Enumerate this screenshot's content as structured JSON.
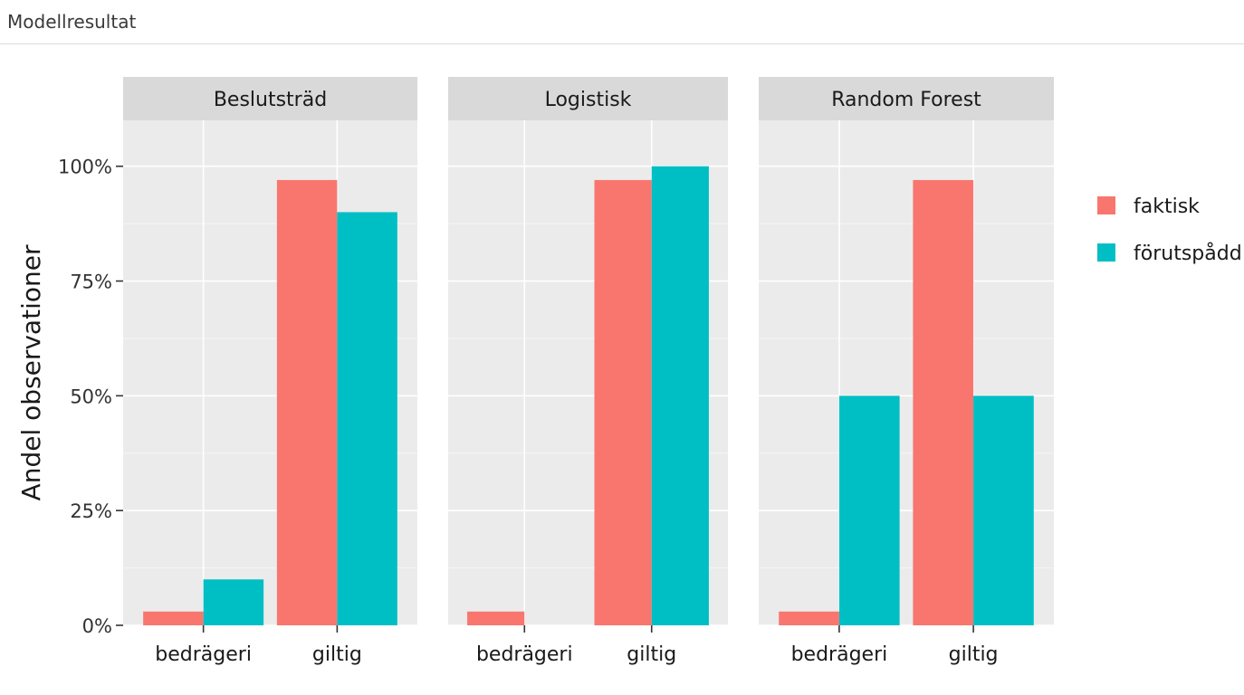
{
  "window": {
    "title": "Modellresultat"
  },
  "chart_data": {
    "type": "bar",
    "ylabel": "Andel observationer",
    "xlabel": "",
    "ylim": [
      0,
      1.1
    ],
    "yticks": [
      0,
      0.25,
      0.5,
      0.75,
      1.0
    ],
    "ytick_labels": [
      "0%",
      "25%",
      "50%",
      "75%",
      "100%"
    ],
    "categories": [
      "bedrägeri",
      "giltig"
    ],
    "grid": true,
    "legend_position": "right",
    "series_colors": {
      "faktisk": "#F8766D",
      "förutspådd": "#00BFC4"
    },
    "legend": [
      {
        "name": "faktisk",
        "color": "#F8766D"
      },
      {
        "name": "förutspådd",
        "color": "#00BFC4"
      }
    ],
    "panels": [
      {
        "title": "Beslutsträd",
        "series": [
          {
            "name": "faktisk",
            "values": [
              0.03,
              0.97
            ]
          },
          {
            "name": "förutspådd",
            "values": [
              0.1,
              0.9
            ]
          }
        ]
      },
      {
        "title": "Logistisk",
        "series": [
          {
            "name": "faktisk",
            "values": [
              0.03,
              0.97
            ]
          },
          {
            "name": "förutspådd",
            "values": [
              0.0,
              1.0
            ]
          }
        ]
      },
      {
        "title": "Random Forest",
        "series": [
          {
            "name": "faktisk",
            "values": [
              0.03,
              0.97
            ]
          },
          {
            "name": "förutspådd",
            "values": [
              0.5,
              0.5
            ]
          }
        ]
      }
    ]
  }
}
